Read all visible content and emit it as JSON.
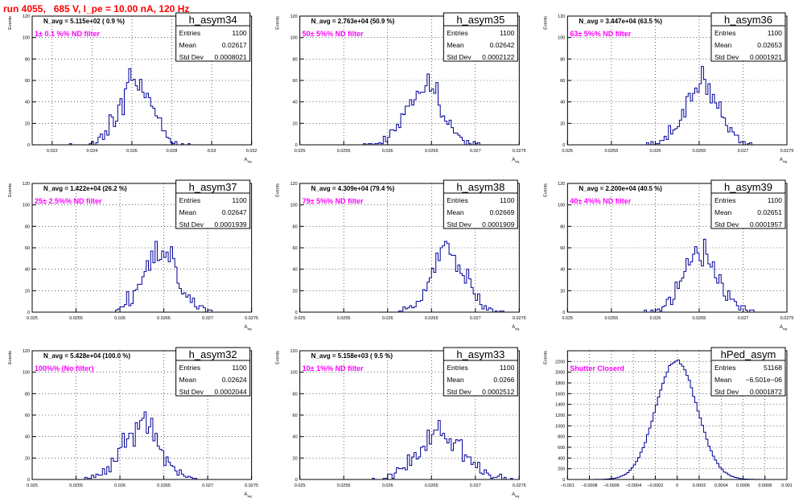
{
  "run_title": "run 4055,   685 V, I_pe = 10.00 nA, 120 Hz",
  "colors": {
    "hist_line": "#000099",
    "annotation": "#ff00ff",
    "run_title": "#ff0000"
  },
  "stats_labels": [
    "Entries",
    "Mean",
    "Std Dev"
  ],
  "chart_data": [
    {
      "name": "h_asym34",
      "type": "histogram",
      "stats": {
        "entries": "1100",
        "mean": "0.02617",
        "std_dev": "0.0008021"
      },
      "n_avg_text": "N_avg = 5.115e+02 ( 0.9 %)",
      "filter_text": "1± 0.1 %% ND filter",
      "xlim": [
        0.021,
        0.032
      ],
      "ylim": [
        0,
        120
      ],
      "xticks": [
        "0.022",
        "0.024",
        "0.026",
        "0.028",
        "0.03",
        "0.032"
      ],
      "yticks": [
        "0",
        "20",
        "40",
        "60",
        "80",
        "100",
        "120"
      ],
      "xlabel": "A_sig",
      "ylabel": "Events",
      "shape": {
        "kind": "gauss",
        "mean": 0.02617,
        "sigma": 0.0008021,
        "n": 1100,
        "bins": 100,
        "seed": 34
      }
    },
    {
      "name": "h_asym35",
      "type": "histogram",
      "stats": {
        "entries": "1100",
        "mean": "0.02642",
        "std_dev": "0.0002122"
      },
      "n_avg_text": "N_avg = 2.763e+04 (50.9 %)",
      "filter_text": "50± 5%% ND filter",
      "xlim": [
        0.025,
        0.0275
      ],
      "ylim": [
        0,
        120
      ],
      "xticks": [
        "0.025",
        "0.0255",
        "0.026",
        "0.0265",
        "0.027",
        "0.0275"
      ],
      "yticks": [
        "0",
        "20",
        "40",
        "60",
        "80",
        "100",
        "120"
      ],
      "xlabel": "A_sig",
      "ylabel": "Events",
      "shape": {
        "kind": "gauss",
        "mean": 0.02642,
        "sigma": 0.0002122,
        "n": 1100,
        "bins": 100,
        "seed": 35
      }
    },
    {
      "name": "h_asym36",
      "type": "histogram",
      "stats": {
        "entries": "1100",
        "mean": "0.02653",
        "std_dev": "0.0001921"
      },
      "n_avg_text": "N_avg = 3.447e+04 (63.5 %)",
      "filter_text": "63± 5%% ND filter",
      "xlim": [
        0.025,
        0.0275
      ],
      "ylim": [
        0,
        120
      ],
      "xticks": [
        "0.025",
        "0.0255",
        "0.026",
        "0.0265",
        "0.027",
        "0.0275"
      ],
      "yticks": [
        "0",
        "20",
        "40",
        "60",
        "80",
        "100",
        "120"
      ],
      "xlabel": "A_sig",
      "ylabel": "Events",
      "shape": {
        "kind": "gauss",
        "mean": 0.02653,
        "sigma": 0.0001921,
        "n": 1100,
        "bins": 100,
        "seed": 36
      }
    },
    {
      "name": "h_asym37",
      "type": "histogram",
      "stats": {
        "entries": "1100",
        "mean": "0.02647",
        "std_dev": "0.0001939"
      },
      "n_avg_text": "N_avg = 1.422e+04 (26.2 %)",
      "filter_text": "25± 2.5%% ND filter",
      "xlim": [
        0.025,
        0.0275
      ],
      "ylim": [
        0,
        120
      ],
      "xticks": [
        "0.025",
        "0.0255",
        "0.026",
        "0.0265",
        "0.027",
        "0.0275"
      ],
      "yticks": [
        "0",
        "20",
        "40",
        "60",
        "80",
        "100",
        "120"
      ],
      "xlabel": "A_sig",
      "ylabel": "Events",
      "shape": {
        "kind": "gauss",
        "mean": 0.02647,
        "sigma": 0.0001939,
        "n": 1100,
        "bins": 100,
        "seed": 37
      }
    },
    {
      "name": "h_asym38",
      "type": "histogram",
      "stats": {
        "entries": "1100",
        "mean": "0.02669",
        "std_dev": "0.0001909"
      },
      "n_avg_text": "N_avg = 4.309e+04 (79.4 %)",
      "filter_text": "79± 5%% ND filter",
      "xlim": [
        0.025,
        0.0275
      ],
      "ylim": [
        0,
        120
      ],
      "xticks": [
        "0.025",
        "0.0255",
        "0.026",
        "0.0265",
        "0.027",
        "0.0275"
      ],
      "yticks": [
        "0",
        "20",
        "40",
        "60",
        "80",
        "100",
        "120"
      ],
      "xlabel": "A_sig",
      "ylabel": "Events",
      "shape": {
        "kind": "gauss",
        "mean": 0.02669,
        "sigma": 0.0001909,
        "n": 1100,
        "bins": 100,
        "seed": 38
      }
    },
    {
      "name": "h_asym39",
      "type": "histogram",
      "stats": {
        "entries": "1100",
        "mean": "0.02651",
        "std_dev": "0.0001957"
      },
      "n_avg_text": "N_avg = 2.200e+04 (40.5 %)",
      "filter_text": "40± 4%% ND filter",
      "xlim": [
        0.025,
        0.0275
      ],
      "ylim": [
        0,
        120
      ],
      "xticks": [
        "0.025",
        "0.0255",
        "0.026",
        "0.0265",
        "0.027",
        "0.0275"
      ],
      "yticks": [
        "0",
        "20",
        "40",
        "60",
        "80",
        "100",
        "120"
      ],
      "xlabel": "A_sig",
      "ylabel": "Events",
      "shape": {
        "kind": "gauss",
        "mean": 0.02651,
        "sigma": 0.0001957,
        "n": 1100,
        "bins": 100,
        "seed": 39
      }
    },
    {
      "name": "h_asym32",
      "type": "histogram",
      "stats": {
        "entries": "1100",
        "mean": "0.02624",
        "std_dev": "0.0002044"
      },
      "n_avg_text": "N_avg = 5.428e+04 (100.0 %)",
      "filter_text": "100%% (No filter)",
      "xlim": [
        0.025,
        0.0275
      ],
      "ylim": [
        0,
        120
      ],
      "xticks": [
        "0.025",
        "0.0255",
        "0.026",
        "0.0265",
        "0.027",
        "0.0275"
      ],
      "yticks": [
        "0",
        "20",
        "40",
        "60",
        "80",
        "100",
        "120"
      ],
      "xlabel": "A_sig",
      "ylabel": "Events",
      "shape": {
        "kind": "gauss",
        "mean": 0.02624,
        "sigma": 0.0002044,
        "n": 1100,
        "bins": 100,
        "seed": 32
      }
    },
    {
      "name": "h_asym33",
      "type": "histogram",
      "stats": {
        "entries": "1100",
        "mean": "0.0266",
        "std_dev": "0.0002512"
      },
      "n_avg_text": "N_avg = 5.158e+03 ( 9.5 %)",
      "filter_text": "10± 1%% ND filter",
      "xlim": [
        0.025,
        0.0275
      ],
      "ylim": [
        0,
        120
      ],
      "xticks": [
        "0.025",
        "0.0255",
        "0.026",
        "0.0265",
        "0.027",
        "0.0275"
      ],
      "yticks": [
        "0",
        "20",
        "40",
        "60",
        "80",
        "100",
        "120"
      ],
      "xlabel": "A_sig",
      "ylabel": "Events",
      "shape": {
        "kind": "gauss",
        "mean": 0.0266,
        "sigma": 0.0002512,
        "n": 1100,
        "bins": 100,
        "seed": 33
      }
    },
    {
      "name": "hPed_asym",
      "type": "histogram",
      "stats": {
        "entries": "51168",
        "mean": "−6.501e−06",
        "std_dev": "0.0001872"
      },
      "n_avg_text": "",
      "filter_text": "Shutter Closerd",
      "xlim": [
        -0.001,
        0.001
      ],
      "ylim": [
        0,
        2400
      ],
      "xticks": [
        "−0.001",
        "−0.0008",
        "−0.0006",
        "−0.0004",
        "−0.0002",
        "0",
        "0.0002",
        "0.0004",
        "0.0006",
        "0.0008",
        "0.001"
      ],
      "yticks": [
        "0",
        "200",
        "400",
        "600",
        "800",
        "1000",
        "1200",
        "1400",
        "1600",
        "1800",
        "2000",
        "2200"
      ],
      "xlabel": "",
      "ylabel": "Events",
      "shape": {
        "kind": "gauss",
        "mean": -6.5e-06,
        "sigma": 0.0001872,
        "n": 51168,
        "bins": 100,
        "seed": 99,
        "peak": 2220
      }
    }
  ]
}
